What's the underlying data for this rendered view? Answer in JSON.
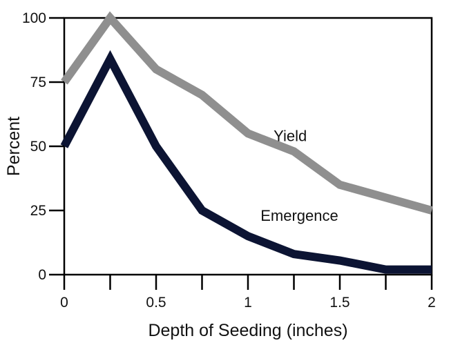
{
  "chart_data": {
    "type": "line",
    "title": "",
    "xlabel": "Depth of Seeding (inches)",
    "ylabel": "Percent",
    "xlim": [
      0,
      2
    ],
    "ylim": [
      0,
      100
    ],
    "grid": false,
    "x_ticks": [
      {
        "value": 0,
        "label": "0"
      },
      {
        "value": 0.25,
        "label": ""
      },
      {
        "value": 0.5,
        "label": "0.5"
      },
      {
        "value": 0.75,
        "label": ""
      },
      {
        "value": 1,
        "label": "1"
      },
      {
        "value": 1.25,
        "label": ""
      },
      {
        "value": 1.5,
        "label": "1.5"
      },
      {
        "value": 1.75,
        "label": ""
      },
      {
        "value": 2,
        "label": "2"
      }
    ],
    "y_ticks": [
      {
        "value": 0,
        "label": "0"
      },
      {
        "value": 25,
        "label": "25"
      },
      {
        "value": 50,
        "label": "50"
      },
      {
        "value": 75,
        "label": "75"
      },
      {
        "value": 100,
        "label": "100"
      }
    ],
    "x": [
      0,
      0.25,
      0.5,
      0.75,
      1,
      1.25,
      1.5,
      1.75,
      2
    ],
    "series": [
      {
        "name": "Yield",
        "color": "#8f8f8f",
        "values": [
          75,
          100,
          80,
          70,
          55,
          48,
          35,
          30,
          25
        ],
        "label_at": [
          1.23,
          52
        ]
      },
      {
        "name": "Emergence",
        "color": "#0c1433",
        "values": [
          50,
          84,
          50,
          25,
          15,
          8,
          5.5,
          2,
          2
        ],
        "label_at": [
          1.28,
          21
        ]
      }
    ]
  }
}
